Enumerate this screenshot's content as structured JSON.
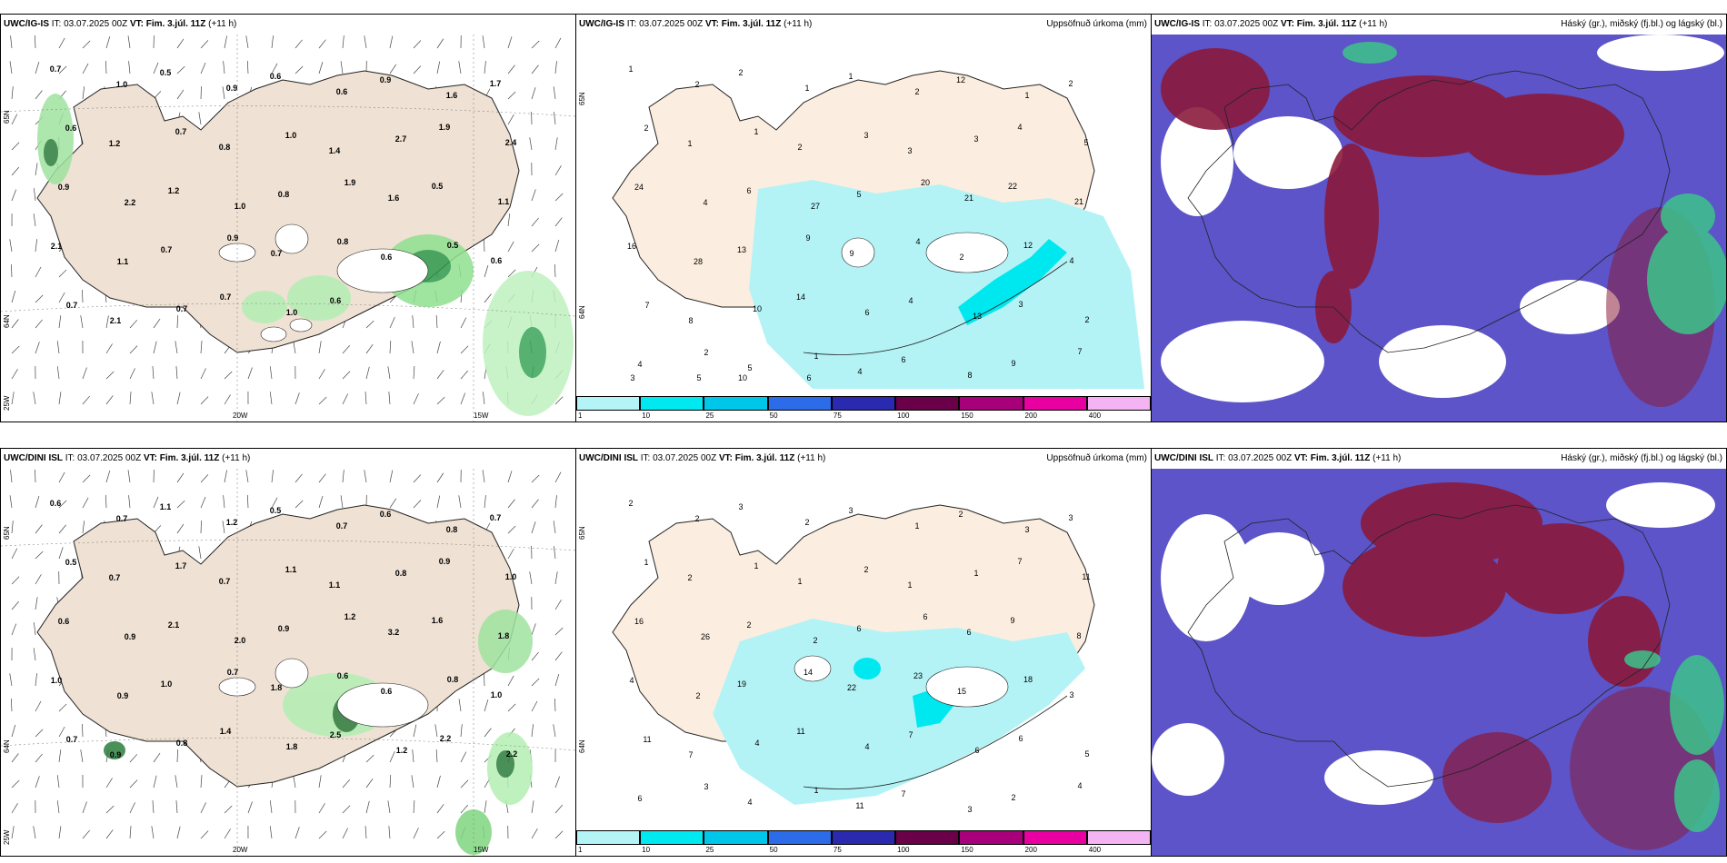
{
  "panels": [
    {
      "id": "p1",
      "model": "UWC/IG-IS",
      "it_label": "IT:",
      "it": "03.07.2025 00Z",
      "vt_label": "VT: Fim. 3.júl. 11Z",
      "lead": "(+11 h)",
      "right": "",
      "axes": {
        "lat1": "65N",
        "lat2": "64N",
        "lon1": "20W",
        "lon2": "15W",
        "lon3": "25W"
      },
      "values": [
        "0.7",
        "1.0",
        "0.5",
        "0.9",
        "0.6",
        "0.6",
        "0.9",
        "1.6",
        "1.7",
        "0.6",
        "1.2",
        "0.7",
        "0.8",
        "1.0",
        "1.4",
        "2.7",
        "1.9",
        "2.4",
        "0.9",
        "2.2",
        "1.2",
        "1.0",
        "0.8",
        "1.9",
        "1.6",
        "0.5",
        "1.1",
        "2.1",
        "1.1",
        "0.7",
        "0.9",
        "0.7",
        "0.8",
        "0.6",
        "0.5",
        "0.6",
        "0.7",
        "2.1",
        "0.7",
        "0.7",
        "1.0",
        "0.6"
      ]
    },
    {
      "id": "p2",
      "model": "UWC/IG-IS",
      "it_label": "IT:",
      "it": "03.07.2025 00Z",
      "vt_label": "VT: Fim. 3.júl. 11Z",
      "lead": "(+11 h)",
      "right": "Uppsöfnuð úrkoma (mm)",
      "axes": {
        "lat1": "65N",
        "lat2": "64N"
      },
      "values": [
        "1",
        "2",
        "2",
        "1",
        "1",
        "2",
        "12",
        "1",
        "2",
        "2",
        "1",
        "1",
        "2",
        "3",
        "3",
        "3",
        "4",
        "5",
        "24",
        "4",
        "6",
        "27",
        "5",
        "20",
        "21",
        "22",
        "21",
        "16",
        "28",
        "13",
        "9",
        "9",
        "4",
        "2",
        "12",
        "4",
        "7",
        "8",
        "10",
        "14",
        "6",
        "4",
        "13",
        "3",
        "2",
        "4",
        "2",
        "5",
        "1",
        "4",
        "6",
        "8",
        "9",
        "7",
        "3",
        "5",
        "10",
        "6"
      ],
      "cbar_ticks": [
        "1",
        "10",
        "25",
        "50",
        "75",
        "100",
        "150",
        "200",
        "400"
      ]
    },
    {
      "id": "p3",
      "model": "UWC/IG-IS",
      "it_label": "IT:",
      "it": "03.07.2025 00Z",
      "vt_label": "VT: Fim. 3.júl. 11Z",
      "lead": "(+11 h)",
      "right": "Háský (gr.), miðský (fj.bl.) og lágský (bl.)"
    },
    {
      "id": "p4",
      "model": "UWC/DINI ISL",
      "it_label": "IT:",
      "it": "03.07.2025 00Z",
      "vt_label": "VT: Fim. 3.júl. 11Z",
      "lead": "(+11 h)",
      "right": "",
      "axes": {
        "lat1": "65N",
        "lat2": "64N",
        "lon1": "20W",
        "lon2": "15W",
        "lon3": "25W"
      },
      "values": [
        "0.6",
        "0.7",
        "1.1",
        "1.2",
        "0.5",
        "0.7",
        "0.6",
        "0.8",
        "0.7",
        "0.5",
        "0.7",
        "1.7",
        "0.7",
        "1.1",
        "1.1",
        "0.8",
        "0.9",
        "1.0",
        "0.6",
        "0.9",
        "2.1",
        "2.0",
        "0.9",
        "1.2",
        "3.2",
        "1.6",
        "1.8",
        "1.0",
        "0.9",
        "1.0",
        "0.7",
        "1.8",
        "0.6",
        "0.6",
        "0.8",
        "1.0",
        "0.7",
        "0.9",
        "0.8",
        "1.4",
        "1.8",
        "2.5",
        "1.2",
        "2.2",
        "2.2"
      ]
    },
    {
      "id": "p5",
      "model": "UWC/DINI ISL",
      "it_label": "IT:",
      "it": "03.07.2025 00Z",
      "vt_label": "VT: Fim. 3.júl. 11Z",
      "lead": "(+11 h)",
      "right": "Uppsöfnuð úrkoma (mm)",
      "axes": {
        "lat1": "65N",
        "lat2": "64N"
      },
      "values": [
        "2",
        "2",
        "3",
        "2",
        "3",
        "1",
        "2",
        "3",
        "3",
        "1",
        "2",
        "1",
        "1",
        "2",
        "1",
        "1",
        "7",
        "11",
        "16",
        "26",
        "2",
        "2",
        "6",
        "6",
        "6",
        "9",
        "8",
        "4",
        "2",
        "19",
        "14",
        "22",
        "23",
        "15",
        "18",
        "3",
        "11",
        "7",
        "4",
        "11",
        "4",
        "7",
        "6",
        "6",
        "5",
        "6",
        "3",
        "4",
        "1",
        "11",
        "7",
        "3",
        "2",
        "4"
      ],
      "cbar_ticks": [
        "1",
        "10",
        "25",
        "50",
        "75",
        "100",
        "150",
        "200",
        "400"
      ]
    },
    {
      "id": "p6",
      "model": "UWC/DINI ISL",
      "it_label": "IT:",
      "it": "03.07.2025 00Z",
      "vt_label": "VT: Fim. 3.júl. 11Z",
      "lead": "(+11 h)",
      "right": "Háský (gr.), miðský (fj.bl.) og lágský (bl.)"
    }
  ],
  "colors": {
    "land": "#efe1d3",
    "precip1": "#b3f3f6",
    "precip2": "#00e8ef",
    "low": "#5c54c8",
    "mid": "#8b1a3b",
    "high": "#3cc48a"
  },
  "cbar_colors": [
    "#b4f4f6",
    "#00e8f0",
    "#00c6ea",
    "#2c6ce8",
    "#2a2ab0",
    "#6a0048",
    "#a8007a",
    "#e800a0",
    "#f4b4f4"
  ]
}
